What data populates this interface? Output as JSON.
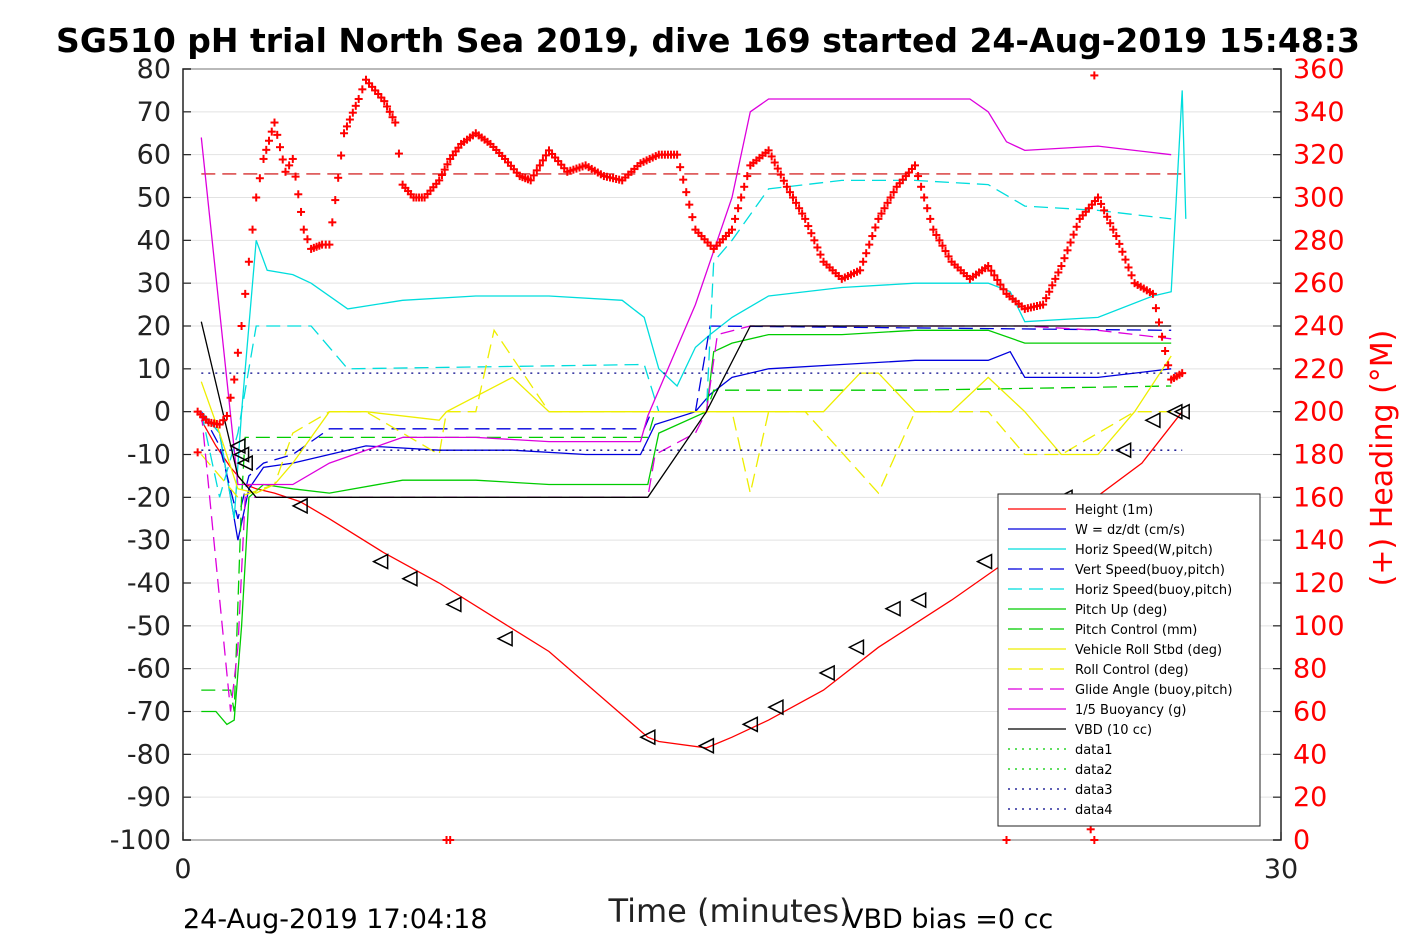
{
  "chart_data": {
    "type": "line",
    "title": "SG510 pH trial North Sea 2019, dive 169 started 24-Aug-2019 15:48:3",
    "xlabel": "Time (minutes)",
    "ylabel_right": "(+) Heading (°M)",
    "footer_left": "24-Aug-2019 17:04:18",
    "footer_right": "VBD bias =0 cc",
    "xlim": [
      0,
      30
    ],
    "ylim": [
      -100,
      80
    ],
    "ylim_right": [
      0,
      360
    ],
    "xticks": [
      "0",
      "30"
    ],
    "yticks": [
      "80",
      "70",
      "60",
      "50",
      "40",
      "30",
      "20",
      "10",
      "0",
      "-10",
      "-20",
      "-30",
      "-40",
      "-50",
      "-60",
      "-70",
      "-80",
      "-90",
      "-100"
    ],
    "yticks_right": [
      "360",
      "340",
      "320",
      "300",
      "280",
      "260",
      "240",
      "220",
      "200",
      "180",
      "160",
      "140",
      "120",
      "100",
      "80",
      "60",
      "40",
      "20",
      "0"
    ],
    "grid": "horizontal",
    "legend_position": "lower-right",
    "series": [
      {
        "name": "Height (1m)",
        "color": "#ff0000",
        "style": "solid",
        "x": [
          0.5,
          0.9,
          1.3,
          1.7,
          2.0,
          2.5,
          3.2,
          4.0,
          5.5,
          7.0,
          8.5,
          10.0,
          12.7,
          13.0,
          14.3,
          15.0,
          16.0,
          17.5,
          19.0,
          21.0,
          22.5,
          24.0,
          26.2,
          27.3
        ],
        "y": [
          -2,
          -8,
          -13,
          -17,
          -18,
          -19,
          -21,
          -25,
          -33,
          -40,
          -48,
          -56,
          -76,
          -77,
          -78.5,
          -76,
          -72,
          -65,
          -55,
          -44,
          -35,
          -26,
          -12,
          0
        ]
      },
      {
        "name": "W = dz/dt (cm/s)",
        "color": "#0000dd",
        "style": "solid",
        "x": [
          0.5,
          1.0,
          1.3,
          1.5,
          1.8,
          2.2,
          3.0,
          4.0,
          5.0,
          7.0,
          9.0,
          11.0,
          12.5,
          12.9,
          14.0,
          14.4,
          15.0,
          16.0,
          18.0,
          20.0,
          22.0,
          22.6,
          23.0,
          25.0,
          26.0,
          27.0
        ],
        "y": [
          0,
          -5,
          -20,
          -30,
          -18,
          -13,
          -12,
          -10,
          -8,
          -9,
          -9,
          -10,
          -10,
          -3,
          0,
          4,
          8,
          10,
          11,
          12,
          12,
          14,
          8,
          8,
          9,
          10
        ]
      },
      {
        "name": "Horiz Speed(W,pitch)",
        "color": "#00dddd",
        "style": "solid",
        "x": [
          0.5,
          1.0,
          1.4,
          1.6,
          1.8,
          2.0,
          2.3,
          3.0,
          3.5,
          4.5,
          6.0,
          8.0,
          10.0,
          12.0,
          12.6,
          13.0,
          13.5,
          14.0,
          14.4,
          15.0,
          16.0,
          18.0,
          20.0,
          22.0,
          22.6,
          23.0,
          25.0,
          26.5,
          27.0,
          27.3,
          27.4
        ],
        "y": [
          0,
          -5,
          -25,
          0,
          20,
          40,
          33,
          32,
          30,
          24,
          26,
          27,
          27,
          26,
          22,
          10,
          6,
          15,
          18,
          22,
          27,
          29,
          30,
          30,
          28,
          21,
          22,
          27,
          28,
          75,
          45
        ]
      },
      {
        "name": "Vert Speed(buoy,pitch)",
        "color": "#0000dd",
        "style": "dashed",
        "x": [
          0.5,
          1.0,
          1.5,
          1.8,
          2.2,
          3.0,
          4.0,
          12.6,
          12.8,
          14.0,
          14.4,
          27.0
        ],
        "y": [
          0,
          -8,
          -25,
          -15,
          -12,
          -10,
          -4,
          -4,
          0,
          0,
          20,
          19
        ]
      },
      {
        "name": "Horiz Speed(buoy,pitch)",
        "color": "#00dddd",
        "style": "dashed",
        "x": [
          0.5,
          1.0,
          1.5,
          1.8,
          2.0,
          3.5,
          4.5,
          12.6,
          13.0,
          14.3,
          14.5,
          15.0,
          16.0,
          18.0,
          20.0,
          22.0,
          23.0,
          25.0,
          27.0
        ],
        "y": [
          0,
          -20,
          -5,
          10,
          20,
          20,
          10,
          11,
          0,
          0,
          35,
          40,
          52,
          54,
          54,
          53,
          48,
          47,
          45
        ]
      },
      {
        "name": "Pitch Up (deg)",
        "color": "#00cc00",
        "style": "solid",
        "x": [
          0.5,
          0.9,
          1.2,
          1.4,
          1.6,
          1.8,
          2.2,
          3.0,
          4.0,
          6.0,
          8.0,
          10.0,
          12.7,
          13.0,
          14.3,
          14.5,
          15.0,
          16.0,
          18.0,
          20.0,
          22.0,
          23.0,
          25.0,
          27.0
        ],
        "y": [
          -70,
          -70,
          -73,
          -72,
          -50,
          -20,
          -17,
          -18,
          -19,
          -16,
          -16,
          -17,
          -17,
          -5,
          0,
          14,
          16,
          18,
          18,
          19,
          19,
          16,
          16,
          16
        ]
      },
      {
        "name": "Pitch Control (mm)",
        "color": "#00cc00",
        "style": "dashed",
        "x": [
          0.5,
          1.3,
          1.4,
          1.6,
          1.7,
          12.7,
          12.9,
          14.3,
          14.5,
          20.0,
          27.0
        ],
        "y": [
          -65,
          -65,
          -70,
          -20,
          -6,
          -6,
          0,
          0,
          5,
          5,
          6
        ]
      },
      {
        "name": "Vehicle Roll Stbd (deg)",
        "color": "#eeee00",
        "style": "solid",
        "x": [
          0.5,
          1.0,
          1.5,
          2.0,
          2.5,
          3.0,
          4.0,
          5.0,
          7.0,
          7.2,
          9.0,
          10.0,
          12.0,
          14.0,
          16.0,
          17.0,
          17.5,
          18.5,
          19.0,
          20.0,
          21.0,
          22.0,
          23.0,
          24.0,
          25.0,
          26.0,
          27.0
        ],
        "y": [
          7,
          -5,
          -18,
          -19,
          -17,
          -12,
          0,
          0,
          -2,
          0,
          8,
          0,
          0,
          0,
          0,
          0,
          0,
          9,
          9,
          0,
          0,
          8,
          0,
          -10,
          -10,
          0,
          13
        ]
      },
      {
        "name": "Roll Control (deg)",
        "color": "#eeee00",
        "style": "dashed",
        "x": [
          0.5,
          1.5,
          2.5,
          3.0,
          4.0,
          5.0,
          7.0,
          7.2,
          8.0,
          8.5,
          10.0,
          12.0,
          14.0,
          15.0,
          15.5,
          16.0,
          16.5,
          17.0,
          19.0,
          20.0,
          21.0,
          22.0,
          23.0,
          24.0,
          26.0,
          27.0
        ],
        "y": [
          -10,
          -20,
          -17,
          -5,
          0,
          0,
          -10,
          0,
          0,
          19,
          0,
          0,
          0,
          0,
          -19,
          0,
          0,
          0,
          -19,
          0,
          0,
          0,
          -10,
          -10,
          0,
          0
        ]
      },
      {
        "name": "Glide Angle (buoy,pitch)",
        "color": "#dd00dd",
        "style": "dashed",
        "x": [
          0.5,
          1.3,
          1.5,
          1.7,
          2.0,
          3.0,
          5.0,
          8.0,
          12.7,
          12.9,
          14.0,
          14.3,
          14.6,
          15.5,
          18.0,
          20.0,
          22.0,
          23.0,
          25.0,
          27.0
        ],
        "y": [
          0,
          -70,
          -55,
          -20,
          -20,
          -20,
          -20,
          -20,
          -20,
          -10,
          -5,
          0,
          18,
          20,
          20,
          20,
          20,
          20,
          19,
          17
        ]
      },
      {
        "name": "1/5 Buoyancy (g)",
        "color": "#dd00dd",
        "style": "solid",
        "x": [
          0.5,
          1.5,
          2.5,
          3.0,
          4.0,
          6.0,
          8.0,
          10.0,
          12.5,
          12.7,
          14.0,
          15.0,
          15.5,
          16.0,
          20.0,
          21.5,
          22.0,
          22.5,
          23.0,
          25.0,
          27.0
        ],
        "y": [
          64,
          -17,
          -17,
          -17,
          -12,
          -6,
          -6,
          -7,
          -7,
          -1,
          25,
          50,
          70,
          73,
          73,
          73,
          70,
          63,
          61,
          62,
          60
        ]
      },
      {
        "name": "VBD (10 cc)",
        "color": "#000000",
        "style": "solid",
        "x": [
          0.5,
          1.5,
          2.0,
          2.5,
          12.7,
          14.3,
          15.5,
          22.5,
          27.0
        ],
        "y": [
          21,
          -15,
          -20,
          -20,
          -20,
          0,
          20,
          20,
          20
        ]
      },
      {
        "name": "data1",
        "color": "#00cc00",
        "style": "dotted",
        "x": [],
        "y": []
      },
      {
        "name": "data2",
        "color": "#00cc00",
        "style": "dotted",
        "x": [],
        "y": []
      },
      {
        "name": "data3",
        "color": "#000088",
        "style": "dotted",
        "x": [
          0.5,
          27.3
        ],
        "y": [
          9,
          9
        ]
      },
      {
        "name": "data4",
        "color": "#000088",
        "style": "dotted",
        "x": [
          0.5,
          27.3
        ],
        "y": [
          -9,
          -9
        ]
      }
    ],
    "reference_line": {
      "y": 55.5,
      "color": "#cc0000",
      "style": "dashed",
      "x": [
        0.5,
        27.3
      ]
    },
    "heading_series": {
      "color": "#ff0000",
      "marker": "+",
      "axis": "right",
      "x": [
        0.4,
        0.7,
        1.0,
        1.2,
        1.4,
        1.6,
        1.8,
        2.0,
        2.2,
        2.5,
        2.8,
        3.0,
        3.3,
        3.5,
        3.8,
        4.0,
        4.4,
        4.8,
        5.0,
        5.5,
        5.8,
        6.0,
        6.3,
        6.6,
        7.0,
        7.3,
        7.6,
        8.0,
        8.4,
        8.8,
        9.2,
        9.5,
        10.0,
        10.5,
        11.0,
        11.5,
        12.0,
        12.5,
        13.0,
        13.5,
        14.0,
        14.5,
        15.0,
        15.5,
        16.0,
        16.5,
        17.0,
        17.5,
        18.0,
        18.5,
        19.0,
        19.5,
        20.0,
        20.5,
        21.0,
        21.5,
        22.0,
        22.5,
        23.0,
        23.5,
        24.0,
        24.5,
        25.0,
        25.5,
        26.0,
        26.5,
        27.0,
        27.3
      ],
      "y": [
        200,
        195,
        194,
        198,
        215,
        240,
        270,
        300,
        318,
        335,
        312,
        318,
        285,
        276,
        278,
        278,
        330,
        346,
        355,
        345,
        335,
        306,
        300,
        300,
        308,
        318,
        325,
        330,
        325,
        318,
        310,
        308,
        322,
        312,
        315,
        310,
        308,
        316,
        320,
        320,
        285,
        276,
        285,
        315,
        322,
        305,
        290,
        270,
        262,
        266,
        290,
        305,
        315,
        285,
        270,
        262,
        268,
        255,
        248,
        250,
        268,
        290,
        300,
        282,
        260,
        255,
        215,
        218
      ],
      "extra_points": [
        {
          "x": 7.2,
          "y": 0
        },
        {
          "x": 7.3,
          "y": 0
        },
        {
          "x": 22.5,
          "y": 0
        },
        {
          "x": 24.8,
          "y": 5
        },
        {
          "x": 24.9,
          "y": 0
        },
        {
          "x": 24.9,
          "y": 357
        },
        {
          "x": 0.4,
          "y": 181
        }
      ]
    },
    "markers": {
      "shape": "triangle-left",
      "x": [
        1.5,
        1.6,
        1.7,
        3.2,
        5.4,
        6.2,
        7.4,
        8.8,
        12.7,
        14.3,
        15.5,
        16.2,
        17.6,
        18.4,
        19.4,
        20.1,
        21.9,
        22.6,
        24.1,
        25.7,
        26.5,
        27.1,
        27.3
      ],
      "y": [
        -8,
        -10,
        -12,
        -22,
        -35,
        -39,
        -45,
        -53,
        -76,
        -78,
        -73,
        -69,
        -61,
        -55,
        -46,
        -44,
        -35,
        -26,
        -20,
        -9,
        -2,
        0,
        0
      ]
    }
  }
}
